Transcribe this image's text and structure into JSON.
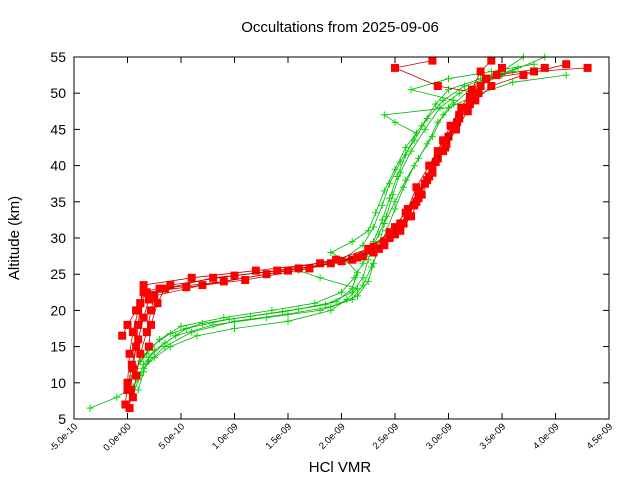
{
  "chart_data": {
    "type": "scatter",
    "title": "Occultations from 2025-09-06",
    "xlabel": "HCl VMR",
    "ylabel": "Altitude (km)",
    "xlim": [
      -5e-10,
      4.5e-09
    ],
    "ylim": [
      5,
      55
    ],
    "x_ticks": [
      -5e-10,
      0,
      5e-10,
      1e-09,
      1.5e-09,
      2e-09,
      2.5e-09,
      3e-09,
      3.5e-09,
      4e-09,
      4.5e-09
    ],
    "x_tick_labels": [
      "-5.0e-10",
      "0.0e+00",
      "5.0e-10",
      "1.0e-09",
      "1.5e-09",
      "2.0e-09",
      "2.5e-09",
      "3.0e-09",
      "3.5e-09",
      "4.0e-09",
      "4.5e-09"
    ],
    "y_ticks": [
      5,
      10,
      15,
      20,
      25,
      30,
      35,
      40,
      45,
      50,
      55
    ],
    "y_tick_labels": [
      "5",
      "10",
      "15",
      "20",
      "25",
      "30",
      "35",
      "40",
      "45",
      "50",
      "55"
    ],
    "grid": false,
    "legend": "none",
    "colors": {
      "red": "#ff0000",
      "green": "#00dd00",
      "red_line": "#c80000",
      "green_line": "#00b400"
    },
    "series": [
      {
        "marker": "square",
        "color": "#ff0000",
        "profiles": [
          [
            [
              2e-11,
              6.5
            ],
            [
              3e-11,
              9
            ],
            [
              5e-11,
              12
            ],
            [
              8e-11,
              15
            ],
            [
              1e-10,
              18
            ],
            [
              1.2e-10,
              21
            ],
            [
              1.5e-10,
              23.5
            ],
            [
              6e-10,
              24.5
            ],
            [
              1.2e-09,
              25.5
            ],
            [
              1.8e-09,
              26.5
            ],
            [
              2.2e-09,
              27.5
            ],
            [
              2.4e-09,
              29
            ],
            [
              2.55e-09,
              31
            ],
            [
              2.65e-09,
              33
            ],
            [
              2.75e-09,
              36
            ],
            [
              2.85e-09,
              39
            ],
            [
              2.95e-09,
              42
            ],
            [
              3.05e-09,
              45
            ],
            [
              3.15e-09,
              48
            ],
            [
              3.25e-09,
              50
            ],
            [
              3.35e-09,
              52
            ],
            [
              3.5e-09,
              53.5
            ]
          ],
          [
            [
              -2e-11,
              7
            ],
            [
              0.0,
              10
            ],
            [
              2e-11,
              14
            ],
            [
              5e-11,
              17
            ],
            [
              1e-10,
              20
            ],
            [
              1.5e-10,
              22.5
            ],
            [
              4e-10,
              23.5
            ],
            [
              1e-09,
              24.8
            ],
            [
              1.6e-09,
              25.8
            ],
            [
              2.1e-09,
              27
            ],
            [
              2.35e-09,
              28.5
            ],
            [
              2.5e-09,
              30.5
            ],
            [
              2.62e-09,
              33
            ],
            [
              2.72e-09,
              35.5
            ],
            [
              2.8e-09,
              38
            ],
            [
              2.9e-09,
              41
            ],
            [
              3e-09,
              44
            ],
            [
              3.1e-09,
              47
            ],
            [
              3.2e-09,
              49.5
            ],
            [
              3.35e-09,
              52
            ],
            [
              3.8e-09,
              53
            ],
            [
              4.3e-09,
              53.5
            ]
          ],
          [
            [
              5e-11,
              8
            ],
            [
              8e-11,
              11
            ],
            [
              1.2e-10,
              14
            ],
            [
              1.8e-10,
              17
            ],
            [
              2.2e-10,
              20
            ],
            [
              2.5e-10,
              22
            ],
            [
              7e-10,
              23.5
            ],
            [
              1.3e-09,
              25
            ],
            [
              1.9e-09,
              26.5
            ],
            [
              2.3e-09,
              28
            ],
            [
              2.45e-09,
              30
            ],
            [
              2.58e-09,
              32
            ],
            [
              2.68e-09,
              34.5
            ],
            [
              2.78e-09,
              37.5
            ],
            [
              2.88e-09,
              40.5
            ],
            [
              2.98e-09,
              43
            ],
            [
              3.08e-09,
              46
            ],
            [
              3.2e-09,
              48.5
            ],
            [
              3.3e-09,
              51
            ],
            [
              3.45e-09,
              52.5
            ],
            [
              3.9e-09,
              53.5
            ]
          ],
          [
            [
              0.0,
              9
            ],
            [
              4e-11,
              12.5
            ],
            [
              1e-10,
              16
            ],
            [
              1.5e-10,
              19
            ],
            [
              2e-10,
              21.5
            ],
            [
              3e-10,
              23
            ],
            [
              9e-10,
              24
            ],
            [
              1.5e-09,
              25.5
            ],
            [
              2e-09,
              26.8
            ],
            [
              2.3e-09,
              28.8
            ],
            [
              2.5e-09,
              31.5
            ],
            [
              2.62e-09,
              34
            ],
            [
              2.7e-09,
              37
            ],
            [
              2.82e-09,
              40
            ],
            [
              2.95e-09,
              43.5
            ],
            [
              3.1e-09,
              46.5
            ],
            [
              3.25e-09,
              49
            ],
            [
              3.4e-09,
              51
            ],
            [
              3.7e-09,
              52.5
            ],
            [
              4.1e-09,
              54
            ]
          ],
          [
            [
              -5e-11,
              16.5
            ],
            [
              0.0,
              18
            ],
            [
              8e-11,
              20
            ],
            [
              1.2e-10,
              21
            ],
            [
              1.8e-10,
              22.5
            ],
            [
              5.5e-10,
              23.2
            ],
            [
              1.1e-09,
              24.2
            ],
            [
              1.7e-09,
              25.8
            ],
            [
              2.15e-09,
              27.3
            ],
            [
              2.4e-09,
              29.5
            ],
            [
              2.55e-09,
              32
            ],
            [
              2.7e-09,
              35
            ],
            [
              2.82e-09,
              38.5
            ],
            [
              2.9e-09,
              42
            ],
            [
              3.02e-09,
              45.5
            ],
            [
              3.12e-09,
              48
            ],
            [
              3.22e-09,
              50.5
            ],
            [
              3.3e-09,
              53
            ],
            [
              3.4e-09,
              54.5
            ]
          ],
          [
            [
              2e-10,
              15
            ],
            [
              2.2e-10,
              18
            ],
            [
              2.8e-10,
              21
            ],
            [
              3.5e-10,
              23
            ],
            [
              8e-10,
              24.5
            ],
            [
              1.4e-09,
              25.5
            ],
            [
              1.95e-09,
              27
            ],
            [
              2.25e-09,
              28.5
            ],
            [
              2.45e-09,
              30.8
            ],
            [
              2.6e-09,
              33.5
            ],
            [
              2.72e-09,
              36.5
            ],
            [
              2.85e-09,
              39.5
            ],
            [
              2.97e-09,
              42.5
            ],
            [
              3.07e-09,
              45
            ],
            [
              3.18e-09,
              47.5
            ],
            [
              3.28e-09,
              50
            ],
            [
              2.9e-09,
              51
            ],
            [
              2.5e-09,
              53.5
            ],
            [
              2.85e-09,
              54.5
            ]
          ]
        ]
      },
      {
        "marker": "plus",
        "color": "#00dd00",
        "profiles": [
          [
            [
              -3.5e-10,
              6.5
            ],
            [
              -1e-10,
              8
            ],
            [
              5e-11,
              9.5
            ],
            [
              1.2e-10,
              11
            ],
            [
              2e-10,
              13
            ],
            [
              3.5e-10,
              15
            ],
            [
              6e-10,
              17
            ],
            [
              1e-09,
              18.5
            ],
            [
              1.5e-09,
              19.5
            ],
            [
              1.9e-09,
              20.5
            ],
            [
              2.15e-09,
              22
            ],
            [
              2.25e-09,
              24
            ],
            [
              2.3e-09,
              26.5
            ],
            [
              2.35e-09,
              29
            ],
            [
              2.4e-09,
              32
            ],
            [
              2.5e-09,
              35
            ],
            [
              2.6e-09,
              38
            ],
            [
              2.72e-09,
              41
            ],
            [
              2.85e-09,
              44
            ],
            [
              2.95e-09,
              47
            ],
            [
              3.05e-09,
              49
            ],
            [
              2.65e-09,
              50.5
            ],
            [
              3e-09,
              52
            ],
            [
              3.4e-09,
              53
            ],
            [
              3.8e-09,
              54
            ]
          ],
          [
            [
              5e-11,
              8
            ],
            [
              1e-10,
              10.5
            ],
            [
              1.5e-10,
              12.5
            ],
            [
              2.5e-10,
              14.5
            ],
            [
              4.5e-10,
              16.5
            ],
            [
              8e-10,
              18
            ],
            [
              1.3e-09,
              19
            ],
            [
              1.8e-09,
              20
            ],
            [
              2.1e-09,
              21.5
            ],
            [
              2.2e-09,
              23.5
            ],
            [
              2.28e-09,
              26
            ],
            [
              2.35e-09,
              28.5
            ],
            [
              2.42e-09,
              31
            ],
            [
              2.5e-09,
              34
            ],
            [
              2.58e-09,
              37
            ],
            [
              2.68e-09,
              40
            ],
            [
              2.8e-09,
              43
            ],
            [
              2.9e-09,
              46
            ],
            [
              3.05e-09,
              48.5
            ],
            [
              3.2e-09,
              50.5
            ],
            [
              3.5e-09,
              52.5
            ],
            [
              3.9e-09,
              55
            ]
          ],
          [
            [
              1e-10,
              9
            ],
            [
              1.5e-10,
              11.5
            ],
            [
              2e-10,
              13.5
            ],
            [
              3.5e-10,
              15.5
            ],
            [
              5.5e-10,
              17.5
            ],
            [
              9.5e-10,
              18.8
            ],
            [
              1.45e-09,
              19.8
            ],
            [
              1.85e-09,
              20.8
            ],
            [
              2.1e-09,
              22.5
            ],
            [
              2.2e-09,
              24.5
            ],
            [
              2.25e-09,
              27
            ],
            [
              2.3e-09,
              29.5
            ],
            [
              2.38e-09,
              32.5
            ],
            [
              2.45e-09,
              35.5
            ],
            [
              2.52e-09,
              38.5
            ],
            [
              2.6e-09,
              41.5
            ],
            [
              2.7e-09,
              44.5
            ],
            [
              2.5e-09,
              46
            ],
            [
              2.4e-09,
              47
            ],
            [
              3e-09,
              48
            ],
            [
              3.3e-09,
              50
            ],
            [
              3.6e-09,
              51.5
            ],
            [
              4.1e-09,
              52.5
            ]
          ],
          [
            [
              0.0,
              10
            ],
            [
              8e-11,
              12
            ],
            [
              1.8e-10,
              14
            ],
            [
              3e-10,
              16
            ],
            [
              5e-10,
              17.8
            ],
            [
              9e-10,
              19
            ],
            [
              1.35e-09,
              20
            ],
            [
              1.75e-09,
              21
            ],
            [
              2e-09,
              22.5
            ],
            [
              2.12e-09,
              24.5
            ],
            [
              2.2e-09,
              26.5
            ],
            [
              2.28e-09,
              28.5
            ],
            [
              2.35e-09,
              30.5
            ],
            [
              2.42e-09,
              33
            ],
            [
              2.48e-09,
              36
            ],
            [
              2.55e-09,
              39
            ],
            [
              2.65e-09,
              42
            ],
            [
              2.78e-09,
              45
            ],
            [
              2.92e-09,
              48
            ],
            [
              3.1e-09,
              50
            ],
            [
              3.35e-09,
              52
            ],
            [
              3.65e-09,
              53.5
            ]
          ],
          [
            [
              1.5e-10,
              12
            ],
            [
              2.5e-10,
              13.5
            ],
            [
              4e-10,
              15
            ],
            [
              6.5e-10,
              16.5
            ],
            [
              1e-09,
              17.5
            ],
            [
              1.5e-09,
              18.5
            ],
            [
              1.9e-09,
              20
            ],
            [
              2.05e-09,
              21.5
            ],
            [
              2.15e-09,
              23
            ],
            [
              1.8e-09,
              24.5
            ],
            [
              1.6e-09,
              25.5
            ],
            [
              2e-09,
              27
            ],
            [
              2.2e-09,
              29
            ],
            [
              2.3e-09,
              31.5
            ],
            [
              2.38e-09,
              34.5
            ],
            [
              2.45e-09,
              37.5
            ],
            [
              2.55e-09,
              40.5
            ],
            [
              2.68e-09,
              43.5
            ],
            [
              2.8e-09,
              46.5
            ],
            [
              2.95e-09,
              49
            ],
            [
              3.15e-09,
              51
            ],
            [
              3.45e-09,
              52.5
            ],
            [
              3.7e-09,
              55
            ]
          ],
          [
            [
              5e-11,
              11
            ],
            [
              1.2e-10,
              13
            ],
            [
              2.2e-10,
              15
            ],
            [
              4e-10,
              16.8
            ],
            [
              7e-10,
              18.2
            ],
            [
              1.15e-09,
              19.2
            ],
            [
              1.6e-09,
              20.2
            ],
            [
              1.95e-09,
              21.2
            ],
            [
              2.1e-09,
              23
            ],
            [
              2.15e-09,
              25.2
            ],
            [
              2.05e-09,
              26.8
            ],
            [
              1.9e-09,
              28
            ],
            [
              2.1e-09,
              29.5
            ],
            [
              2.25e-09,
              31
            ],
            [
              2.32e-09,
              33.5
            ],
            [
              2.4e-09,
              36.5
            ],
            [
              2.5e-09,
              39.5
            ],
            [
              2.6e-09,
              42.5
            ],
            [
              2.75e-09,
              45.5
            ],
            [
              2.88e-09,
              48.5
            ],
            [
              3e-09,
              50.5
            ],
            [
              3.3e-09,
              52
            ],
            [
              3.6e-09,
              53
            ]
          ]
        ]
      }
    ]
  }
}
